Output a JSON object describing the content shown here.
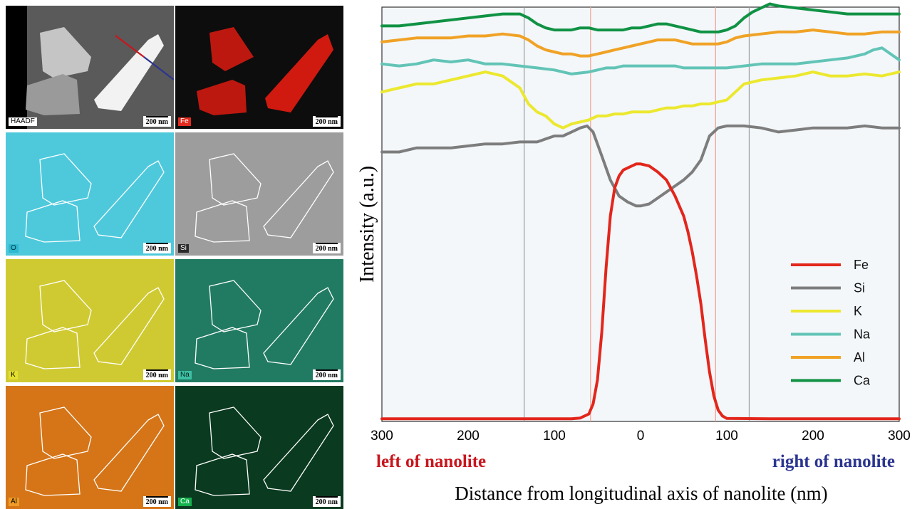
{
  "maps": {
    "tiles": [
      {
        "id": "haadf",
        "label": "HAADF",
        "bg": "#2a2a2a",
        "tone": "#d8d8d8",
        "label_bg": "#ffffff",
        "label_fg": "#000000"
      },
      {
        "id": "fe",
        "label": "Fe",
        "bg": "#0d0d0d",
        "tone": "#d01a10",
        "label_bg": "#e22b1e",
        "label_fg": "#ffffff"
      },
      {
        "id": "o",
        "label": "O",
        "bg": "#43c3d8",
        "tone": "#64d4e6",
        "label_bg": "#2fb9d1",
        "label_fg": "#00303a"
      },
      {
        "id": "si",
        "label": "Si",
        "bg": "#b9b9b9",
        "tone": "#6a6a6a",
        "label_bg": "#2b2b2b",
        "label_fg": "#ffffff"
      },
      {
        "id": "k",
        "label": "K",
        "bg": "#c8c22a",
        "tone": "#e0db42",
        "label_bg": "#e5df2f",
        "label_fg": "#000000"
      },
      {
        "id": "na",
        "label": "Na",
        "bg": "#1b6a54",
        "tone": "#2d9a7e",
        "label_bg": "#3cc0a4",
        "label_fg": "#0d1e1b"
      },
      {
        "id": "al",
        "label": "Al",
        "bg": "#d06a0e",
        "tone": "#e08a2c",
        "label_bg": "#ef9c28",
        "label_fg": "#000000"
      },
      {
        "id": "ca",
        "label": "Ca",
        "bg": "#07301a",
        "tone": "#124d2b",
        "label_bg": "#14b24e",
        "label_fg": "#ffffff"
      }
    ],
    "scale_label": "200 nm"
  },
  "chart_data": {
    "type": "line",
    "ylabel": "Intensity (a.u.)",
    "xlabel": "Distance from longitudinal axis of nanolite (nm)",
    "x_ticks": [
      "300",
      "200",
      "100",
      "0",
      "100",
      "200",
      "300"
    ],
    "left_annotation": "left of nanolite",
    "right_annotation": "right of nanolite",
    "annotation_colors": {
      "left": "#c8161d",
      "right": "#2b3590"
    },
    "xlim": [
      -300,
      300
    ],
    "ylim": [
      0,
      100
    ],
    "guide_lines": [
      {
        "x": -135,
        "color": "#9a9a9a"
      },
      {
        "x": -58,
        "color": "#f0a090"
      },
      {
        "x": 87,
        "color": "#f0a090"
      },
      {
        "x": 126,
        "color": "#9a9a9a"
      }
    ],
    "series": [
      {
        "name": "Fe",
        "color": "#e3261c",
        "x": [
          -300,
          -250,
          -200,
          -150,
          -100,
          -80,
          -70,
          -60,
          -55,
          -50,
          -45,
          -40,
          -35,
          -30,
          -25,
          -20,
          -15,
          -10,
          -5,
          0,
          10,
          20,
          30,
          40,
          50,
          55,
          60,
          65,
          70,
          75,
          80,
          85,
          90,
          95,
          100,
          150,
          200,
          250,
          300
        ],
        "y": [
          0.3,
          0.3,
          0.3,
          0.3,
          0.3,
          0.3,
          0.5,
          1.5,
          4,
          10,
          22,
          38,
          51,
          58,
          61,
          62.5,
          63,
          63.5,
          64,
          64,
          63.5,
          62,
          60,
          56,
          51,
          47,
          42,
          36,
          29,
          20,
          12,
          6,
          2.5,
          1,
          0.4,
          0.3,
          0.3,
          0.3,
          0.3
        ]
      },
      {
        "name": "Si",
        "color": "#7d7d7d",
        "x": [
          -300,
          -280,
          -260,
          -240,
          -220,
          -200,
          -180,
          -160,
          -140,
          -120,
          -100,
          -90,
          -80,
          -70,
          -62,
          -55,
          -45,
          -35,
          -25,
          -15,
          -5,
          0,
          10,
          20,
          30,
          40,
          50,
          60,
          70,
          75,
          80,
          90,
          100,
          120,
          140,
          160,
          180,
          200,
          220,
          240,
          260,
          280,
          300
        ],
        "y": [
          67,
          67,
          68,
          68,
          68,
          68.5,
          69,
          69,
          69.5,
          69.5,
          71,
          71,
          72,
          73,
          73.5,
          72,
          66,
          60,
          56,
          54.5,
          53.5,
          53.5,
          54,
          55.5,
          57,
          58.5,
          60,
          62,
          65,
          68,
          71,
          73,
          73.5,
          73.5,
          73,
          72,
          72.5,
          73,
          73,
          73,
          73.5,
          73,
          73
        ]
      },
      {
        "name": "K",
        "color": "#ece82e",
        "x": [
          -300,
          -280,
          -260,
          -240,
          -220,
          -200,
          -180,
          -160,
          -140,
          -130,
          -120,
          -110,
          -100,
          -90,
          -80,
          -70,
          -60,
          -50,
          -40,
          -30,
          -20,
          -10,
          0,
          10,
          20,
          30,
          40,
          50,
          60,
          70,
          80,
          90,
          100,
          110,
          120,
          140,
          160,
          180,
          200,
          220,
          240,
          260,
          280,
          300
        ],
        "y": [
          82,
          83,
          84,
          84,
          85,
          86,
          87,
          86,
          83,
          79,
          77,
          76,
          74,
          73,
          74,
          74.5,
          75,
          76,
          76,
          76.5,
          76.5,
          77,
          77,
          77,
          77.5,
          78,
          78,
          78.5,
          78.5,
          79,
          79,
          79.5,
          80,
          82,
          84,
          85,
          85.5,
          86,
          87,
          86,
          86,
          86.5,
          86,
          87
        ]
      },
      {
        "name": "Na",
        "color": "#62c4b6",
        "x": [
          -300,
          -280,
          -260,
          -240,
          -220,
          -200,
          -180,
          -160,
          -140,
          -120,
          -100,
          -80,
          -60,
          -50,
          -40,
          -30,
          -20,
          -10,
          0,
          10,
          20,
          30,
          40,
          50,
          60,
          70,
          80,
          90,
          100,
          120,
          140,
          160,
          180,
          200,
          220,
          240,
          260,
          270,
          280,
          290,
          300
        ],
        "y": [
          89,
          88.5,
          89,
          90,
          89.5,
          90,
          89,
          89,
          88.5,
          88,
          87.5,
          86.5,
          87,
          87.5,
          88,
          88,
          88.5,
          88.5,
          88.5,
          88.5,
          88.5,
          88.5,
          88.5,
          88,
          88,
          88,
          88,
          88,
          88,
          88.5,
          89,
          89,
          89,
          89.5,
          90,
          90.5,
          91.5,
          92.5,
          93,
          91.5,
          90
        ]
      },
      {
        "name": "Al",
        "color": "#f0a226",
        "x": [
          -300,
          -280,
          -260,
          -240,
          -220,
          -200,
          -180,
          -160,
          -140,
          -130,
          -120,
          -110,
          -100,
          -90,
          -80,
          -70,
          -60,
          -50,
          -40,
          -30,
          -20,
          -10,
          0,
          10,
          20,
          30,
          40,
          50,
          60,
          70,
          80,
          90,
          100,
          110,
          120,
          140,
          160,
          180,
          200,
          220,
          240,
          260,
          280,
          300
        ],
        "y": [
          94.5,
          95,
          95.5,
          95.5,
          95.5,
          96,
          96,
          96.5,
          96,
          95,
          93.5,
          92.5,
          92,
          91.5,
          91.5,
          91,
          91,
          91.5,
          92,
          92.5,
          93,
          93.5,
          94,
          94.5,
          95,
          95,
          95,
          94.5,
          94,
          94,
          94,
          94,
          94.5,
          95.5,
          96,
          96.5,
          97,
          97,
          97.5,
          97,
          96.5,
          96.5,
          97,
          97
        ]
      },
      {
        "name": "Ca",
        "color": "#109244",
        "x": [
          -300,
          -280,
          -260,
          -240,
          -220,
          -200,
          -180,
          -160,
          -140,
          -130,
          -120,
          -110,
          -100,
          -90,
          -80,
          -70,
          -60,
          -50,
          -40,
          -30,
          -20,
          -10,
          0,
          10,
          20,
          30,
          40,
          50,
          60,
          70,
          80,
          90,
          100,
          110,
          120,
          130,
          140,
          150,
          160,
          180,
          200,
          220,
          240,
          260,
          280,
          300
        ],
        "y": [
          98.5,
          98.5,
          99,
          99.5,
          100,
          100.5,
          101,
          101.5,
          101.5,
          100.5,
          99,
          98,
          97.5,
          97.5,
          97.5,
          98,
          98,
          97.5,
          97.5,
          97.5,
          97.5,
          98,
          98,
          98.5,
          99,
          99,
          98.5,
          98,
          97.5,
          97,
          97,
          97,
          97.5,
          98.5,
          100.5,
          102,
          103,
          104,
          103.5,
          103,
          102.5,
          102,
          101.5,
          101.5,
          101.5,
          101.5
        ]
      }
    ],
    "legend": {
      "position": "right"
    }
  }
}
